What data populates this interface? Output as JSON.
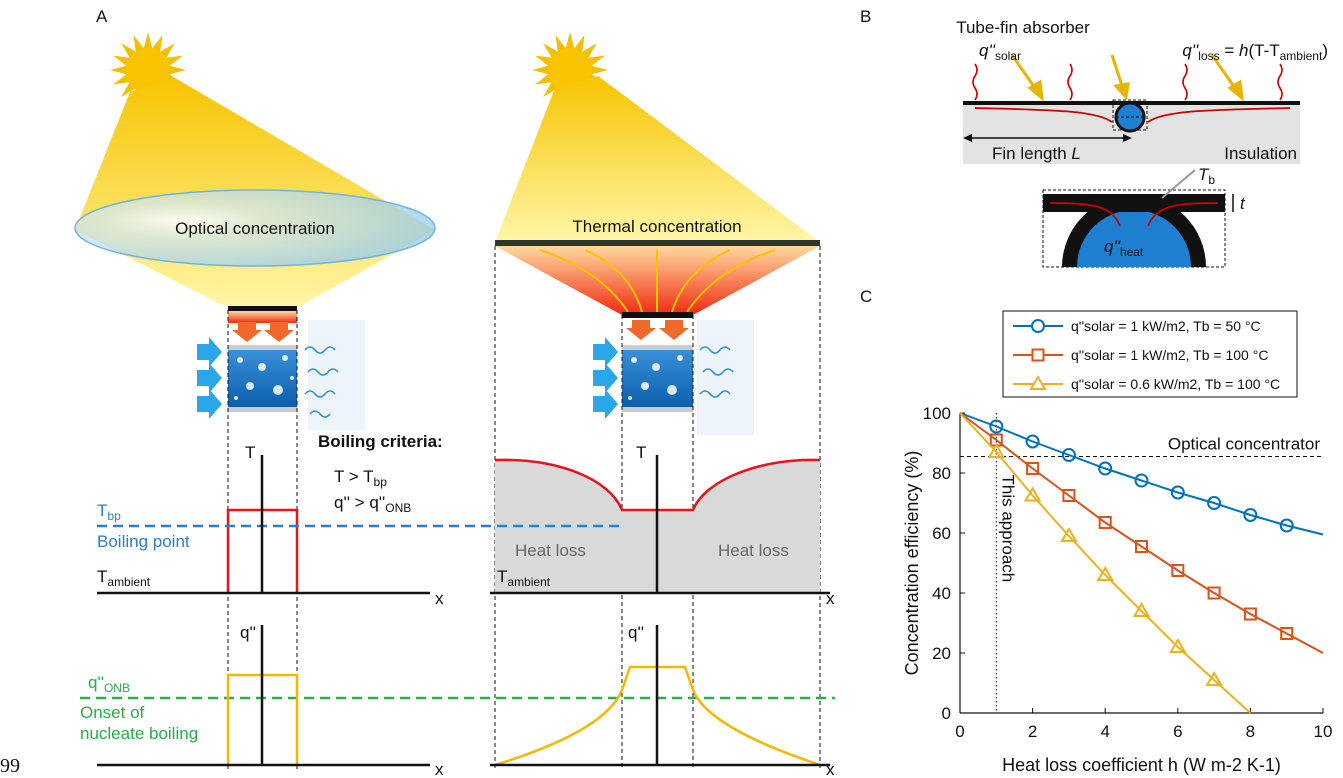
{
  "page_number": "99",
  "panel_labels": [
    "A",
    "B",
    "C"
  ],
  "panel_a": {
    "optical": "Optical concentration",
    "thermal": "Thermal concentration",
    "criteria": {
      "title": "Boiling criteria:",
      "t_rule": {
        "lhs": "T > T",
        "sub": "bp"
      },
      "q_rule": {
        "lhs": "q'' > q''",
        "sub": "ONB"
      }
    },
    "t_axis": "T",
    "q_axis": "q''",
    "x_axis": "x",
    "boiling_point": {
      "symbol": "T",
      "sub": "bp",
      "label": "Boiling point"
    },
    "ambient": {
      "symbol": "T",
      "sub": "ambient"
    },
    "onb": {
      "symbol": "q''",
      "sub": "ONB",
      "label": [
        "Onset of",
        "nucleate boiling"
      ]
    },
    "heat_loss": "Heat loss"
  },
  "panel_b": {
    "title": "Tube-fin absorber",
    "q_solar": {
      "symbol": "q''",
      "sub": "solar"
    },
    "q_loss": {
      "symbol": "q''",
      "sub": "loss",
      "eq": " = ",
      "h": "h",
      "expr": "(T-T",
      "sub2": "ambient",
      "close": ")"
    },
    "fin": "Fin length ",
    "fin_var": "L",
    "insulation": "Insulation",
    "tb": {
      "symbol": "T",
      "sub": "b"
    },
    "t": "t",
    "q_heat": {
      "symbol": "q''",
      "sub": "heat"
    }
  },
  "chart_data": {
    "type": "line",
    "xlabel": "Heat loss coefficient h (W m-2 K-1)",
    "ylabel": "Concentration efficiency (%)",
    "xlim": [
      0,
      10
    ],
    "ylim": [
      0,
      100
    ],
    "xticks": [
      0,
      2,
      4,
      6,
      8,
      10
    ],
    "yticks": [
      0,
      20,
      40,
      60,
      80,
      100
    ],
    "legend": "upper right",
    "markers_at_ends": false,
    "series": [
      {
        "name": "q''solar = 1 kW/m2, Tb = 50 °C",
        "color": "#0072bd",
        "marker": "circle",
        "x": [
          0,
          1,
          2,
          3,
          4,
          5,
          6,
          7,
          8,
          9,
          10
        ],
        "values": [
          100,
          95.5,
          90.5,
          86,
          81.5,
          77.5,
          73.5,
          70,
          66,
          62.5,
          59.5
        ]
      },
      {
        "name": "q''solar = 1 kW/m2, Tb = 100 °C",
        "color": "#d95319",
        "marker": "square",
        "x": [
          0,
          1,
          2,
          3,
          4,
          5,
          6,
          7,
          8,
          9,
          10
        ],
        "values": [
          100,
          91,
          81.5,
          72.5,
          63.5,
          55.5,
          47.5,
          40,
          33,
          26.5,
          20
        ]
      },
      {
        "name": "q''solar = 0.6 kW/m2, Tb = 100 °C",
        "color": "#edb120",
        "marker": "triangle",
        "x": [
          0,
          1,
          2,
          3,
          4,
          5,
          6,
          7,
          8
        ],
        "values": [
          100,
          87,
          72.5,
          59,
          46,
          34,
          22,
          11,
          0
        ]
      }
    ],
    "hline": {
      "value": 85.5,
      "label": "Optical concentrator"
    },
    "vline": {
      "value": 1,
      "label": "This approach"
    }
  }
}
